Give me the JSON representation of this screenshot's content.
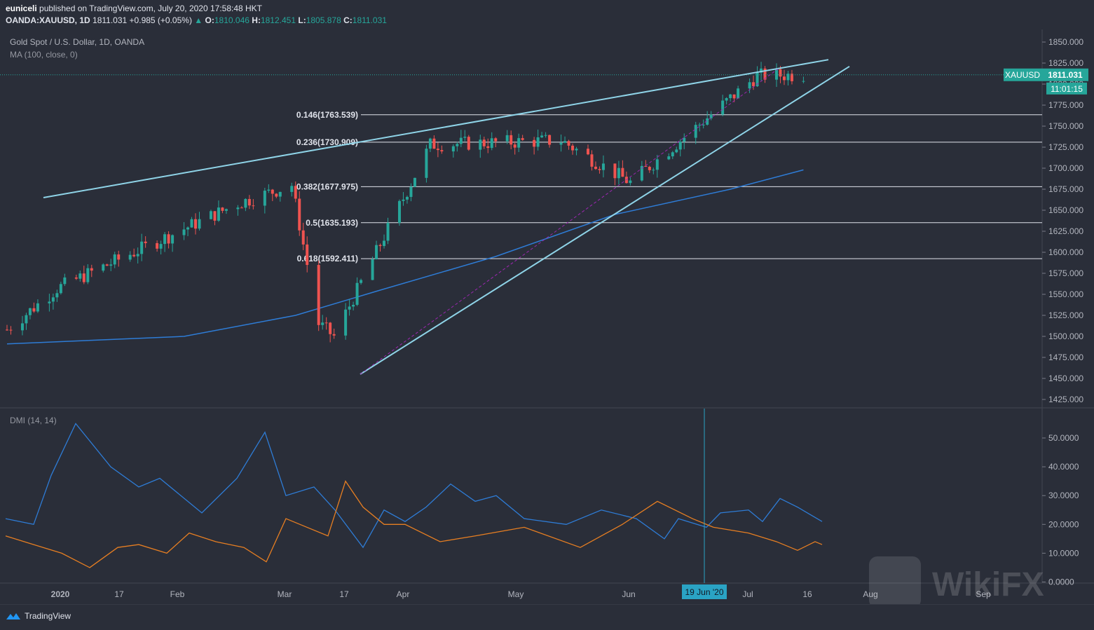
{
  "header": {
    "publisher": "euniceli",
    "published_text": "published on TradingView.com, July 20, 2020 17:58:48 HKT",
    "symbol_line": "OANDA:XAUUSD, 1D",
    "last": "1811.031",
    "change": "+0.985 (+0.05%)",
    "o_label": "O:",
    "o": "1810.046",
    "h_label": "H:",
    "h": "1812.451",
    "l_label": "L:",
    "l": "1805.878",
    "c_label": "C:",
    "c": "1811.031"
  },
  "legends": {
    "main_title": "Gold Spot / U.S. Dollar, 1D, OANDA",
    "ma": "MA (100, close, 0)",
    "dmi": "DMI (14, 14)"
  },
  "price_badge": {
    "symbol": "XAUUSD",
    "price": "1811.031",
    "countdown": "11:01:15"
  },
  "crosshair_label": "19 Jun '20",
  "footer": {
    "brand": "TradingView"
  },
  "watermark": "WikiFX",
  "colors": {
    "background": "#2a2e39",
    "up": "#26a69a",
    "down": "#ef5350",
    "ma": "#2e7cd6",
    "trendline": "#8fd4e8",
    "plus_di": "#2e7cd6",
    "minus_di": "#e67e22"
  },
  "chart_data": [
    {
      "type": "candlestick",
      "title": "Gold Spot / U.S. Dollar, 1D, OANDA",
      "x_ticks": [
        "2020",
        "17",
        "Feb",
        "Mar",
        "17",
        "Apr",
        "May",
        "Jun",
        "Jul",
        "16",
        "Aug",
        "Sep"
      ],
      "y_ticks": [
        "1850.000",
        "1825.000",
        "1800.000",
        "1775.000",
        "1750.000",
        "1725.000",
        "1700.000",
        "1675.000",
        "1650.000",
        "1625.000",
        "1600.000",
        "1575.000",
        "1550.000",
        "1525.000",
        "1500.000",
        "1475.000",
        "1450.000",
        "1425.000"
      ],
      "ylim": [
        1416,
        1860
      ],
      "key_points": [
        {
          "date": "2019-12-26",
          "close": 1508
        },
        {
          "date": "2020-01-08",
          "high": 1611,
          "close": 1557
        },
        {
          "date": "2020-02-24",
          "high": 1689,
          "close": 1658
        },
        {
          "date": "2020-03-09",
          "high": 1703,
          "close": 1680
        },
        {
          "date": "2020-03-16",
          "low": 1451,
          "close": 1515
        },
        {
          "date": "2020-03-20",
          "low": 1455,
          "close": 1500
        },
        {
          "date": "2020-04-14",
          "high": 1747,
          "close": 1728
        },
        {
          "date": "2020-05-18",
          "high": 1765,
          "close": 1733
        },
        {
          "date": "2020-06-05",
          "low": 1671,
          "close": 1683
        },
        {
          "date": "2020-07-08",
          "high": 1818,
          "close": 1810
        },
        {
          "date": "2020-07-20",
          "close": 1811.031
        }
      ],
      "fibonacci_levels": [
        {
          "label": "0.146(1763.539)",
          "value": 1763.539
        },
        {
          "label": "0.236(1730.909)",
          "value": 1730.909
        },
        {
          "label": "0.382(1677.975)",
          "value": 1677.975
        },
        {
          "label": "0.5(1635.193)",
          "value": 1635.193
        },
        {
          "label": "0.618(1592.411)",
          "value": 1592.411
        }
      ],
      "moving_average": {
        "name": "MA (100, close, 0)",
        "points": [
          [
            "2019-12-26",
            1491
          ],
          [
            "2020-02-10",
            1500
          ],
          [
            "2020-03-10",
            1525
          ],
          [
            "2020-04-01",
            1555
          ],
          [
            "2020-05-01",
            1595
          ],
          [
            "2020-06-01",
            1645
          ],
          [
            "2020-07-01",
            1675
          ],
          [
            "2020-07-20",
            1698
          ]
        ]
      },
      "last_price": 1811.031
    },
    {
      "type": "line",
      "title": "DMI (14, 14)",
      "y_ticks": [
        "50.0000",
        "40.0000",
        "30.0000",
        "20.0000",
        "10.0000",
        "0.0000"
      ],
      "ylim": [
        0,
        56
      ],
      "series": [
        {
          "values_note": "+DI",
          "points": [
            [
              0,
              22
            ],
            [
              40,
              20
            ],
            [
              65,
              37
            ],
            [
              100,
              55
            ],
            [
              150,
              40
            ],
            [
              190,
              33
            ],
            [
              220,
              36
            ],
            [
              280,
              24
            ],
            [
              330,
              36
            ],
            [
              370,
              52
            ],
            [
              400,
              30
            ],
            [
              440,
              33
            ],
            [
              470,
              25
            ],
            [
              510,
              12
            ],
            [
              540,
              25
            ],
            [
              570,
              21
            ],
            [
              600,
              26
            ],
            [
              635,
              34
            ],
            [
              670,
              28
            ],
            [
              700,
              30
            ],
            [
              740,
              22
            ],
            [
              800,
              20
            ],
            [
              850,
              25
            ],
            [
              900,
              22
            ],
            [
              940,
              15
            ],
            [
              960,
              22
            ],
            [
              1000,
              19
            ],
            [
              1020,
              24
            ],
            [
              1060,
              25
            ],
            [
              1080,
              21
            ],
            [
              1105,
              29
            ],
            [
              1130,
              26
            ],
            [
              1165,
              21
            ]
          ]
        },
        {
          "values_note": "-DI",
          "points": [
            [
              0,
              16
            ],
            [
              40,
              13
            ],
            [
              80,
              10
            ],
            [
              120,
              5
            ],
            [
              160,
              12
            ],
            [
              190,
              13
            ],
            [
              230,
              10
            ],
            [
              262,
              17
            ],
            [
              300,
              14
            ],
            [
              340,
              12
            ],
            [
              372,
              7
            ],
            [
              400,
              22
            ],
            [
              420,
              20
            ],
            [
              460,
              16
            ],
            [
              485,
              35
            ],
            [
              510,
              26
            ],
            [
              540,
              20
            ],
            [
              570,
              20
            ],
            [
              620,
              14
            ],
            [
              670,
              16
            ],
            [
              740,
              19
            ],
            [
              820,
              12
            ],
            [
              880,
              20
            ],
            [
              930,
              28
            ],
            [
              980,
              22
            ],
            [
              1010,
              19
            ],
            [
              1060,
              17
            ],
            [
              1100,
              14
            ],
            [
              1130,
              11
            ],
            [
              1155,
              14
            ],
            [
              1165,
              13
            ]
          ]
        }
      ]
    }
  ]
}
